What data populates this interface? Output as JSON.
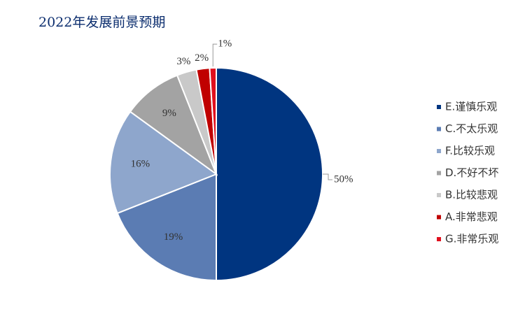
{
  "chart_data": {
    "type": "pie",
    "title": "2022年发展前景预期",
    "categories": [
      "E.谨慎乐观",
      "C.不太乐观",
      "F.比较乐观",
      "D.不好不坏",
      "B.比较悲观",
      "A.非常悲观",
      "G.非常乐观"
    ],
    "values": [
      50,
      19,
      16,
      9,
      3,
      2,
      1
    ],
    "value_labels": [
      "50%",
      "19%",
      "16%",
      "9%",
      "3%",
      "2%",
      "1%"
    ],
    "colors": [
      "#003580",
      "#5b7cb3",
      "#8ea6cc",
      "#a3a3a3",
      "#c9c9c9",
      "#c00000",
      "#e0101e"
    ]
  }
}
